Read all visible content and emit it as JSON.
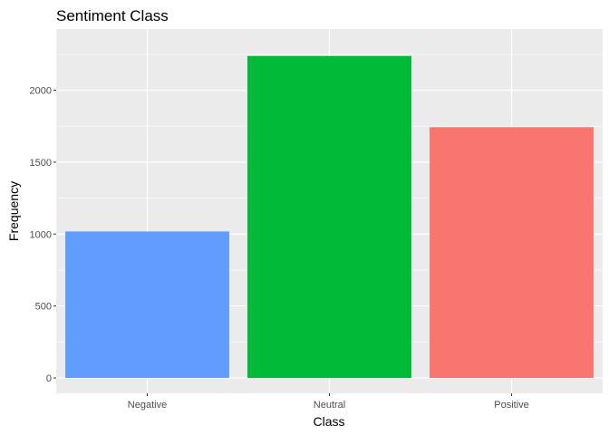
{
  "chart_data": {
    "type": "bar",
    "title": "Sentiment Class",
    "xlabel": "Class",
    "ylabel": "Frequency",
    "categories": [
      "Negative",
      "Neutral",
      "Positive"
    ],
    "values": [
      1018,
      2238,
      1743
    ],
    "colors": [
      "#619CFF",
      "#00BA38",
      "#F8766D"
    ],
    "ylim": [
      0,
      2350
    ],
    "yticks": [
      0,
      500,
      1000,
      1500,
      2000
    ],
    "grid": true,
    "legend": "none",
    "panel_background": "#EBEBEB",
    "gridline_color": "#FFFFFF"
  }
}
